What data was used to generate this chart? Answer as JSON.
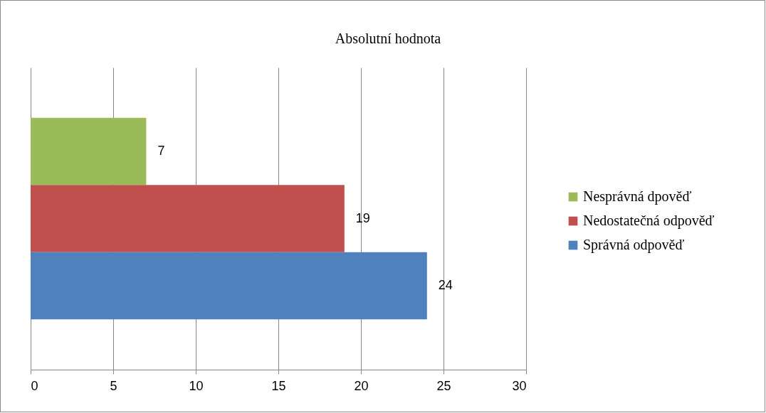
{
  "chart_data": {
    "type": "bar",
    "orientation": "horizontal",
    "title": "Absolutní hodnota",
    "categories": [
      null
    ],
    "series": [
      {
        "name": "Nesprávná dpověď",
        "color": "#9bbb59",
        "values": [
          7
        ]
      },
      {
        "name": "Nedostatečná odpověď",
        "color": "#c0504d",
        "values": [
          19
        ]
      },
      {
        "name": "Správná odpověď",
        "color": "#4f81bd",
        "values": [
          24
        ]
      }
    ],
    "xlim": [
      0,
      30
    ],
    "xticks": [
      0,
      5,
      10,
      15,
      20,
      25,
      30
    ],
    "grid": "x",
    "legend": "right",
    "data_labels": true
  }
}
